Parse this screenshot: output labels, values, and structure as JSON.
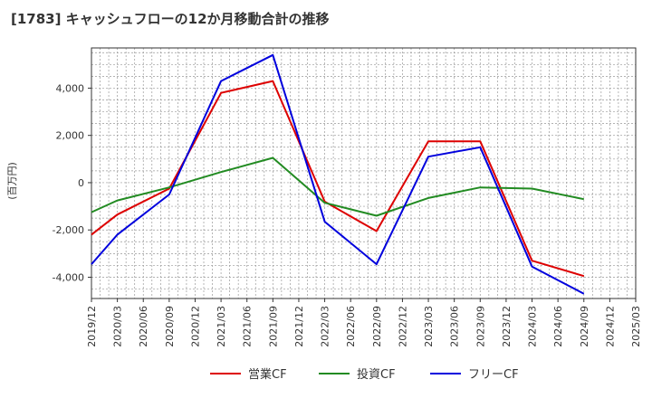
{
  "chart_data": {
    "type": "line",
    "title": "[1783]  キャッシュフローの12か月移動合計の推移",
    "ylabel": "(百万円)",
    "xlabel": "",
    "ylim": [
      -4900,
      5700
    ],
    "yticks": [
      -4000,
      -2000,
      0,
      2000,
      4000
    ],
    "ytick_labels": [
      "-4,000",
      "-2,000",
      "0",
      "2,000",
      "4,000"
    ],
    "categories": [
      "2019/12",
      "2020/03",
      "2020/06",
      "2020/09",
      "2020/12",
      "2021/03",
      "2021/06",
      "2021/09",
      "2021/12",
      "2022/03",
      "2022/06",
      "2022/09",
      "2022/12",
      "2023/03",
      "2023/06",
      "2023/09",
      "2023/12",
      "2024/03",
      "2024/06",
      "2024/09",
      "2024/12",
      "2025/03"
    ],
    "grid": true,
    "legend_position": "bottom",
    "series": [
      {
        "name": "営業CF",
        "color": "#dd0000",
        "values": [
          -2200,
          -1350,
          null,
          -250,
          null,
          3800,
          null,
          4300,
          null,
          -800,
          null,
          -2050,
          null,
          1750,
          null,
          1750,
          null,
          -3300,
          null,
          -3950,
          null,
          null
        ]
      },
      {
        "name": "投資CF",
        "color": "#228b22",
        "values": [
          -1250,
          -750,
          null,
          -200,
          null,
          450,
          null,
          1050,
          null,
          -850,
          null,
          -1400,
          null,
          -650,
          null,
          -200,
          null,
          -250,
          null,
          -700,
          null,
          null
        ]
      },
      {
        "name": "フリーCF",
        "color": "#0000dd",
        "values": [
          -3450,
          -2200,
          null,
          -500,
          null,
          4300,
          null,
          5400,
          null,
          -1650,
          null,
          -3450,
          null,
          1100,
          null,
          1500,
          null,
          -3550,
          null,
          -4700,
          null,
          null
        ]
      }
    ]
  }
}
